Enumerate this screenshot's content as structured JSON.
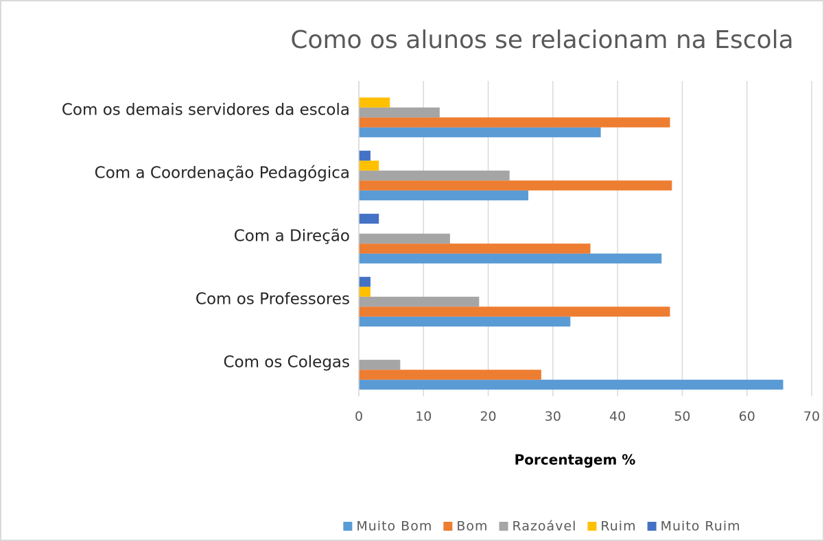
{
  "chart_data": {
    "type": "bar",
    "orientation": "horizontal",
    "title": "Como os alunos se relacionam na Escola",
    "x_label": "Porcentagem %",
    "categories": [
      "Com os Colegas",
      "Com os Professores",
      "Com a Direção",
      "Com a Coordenação Pedagógica",
      "Com os demais servidores da escola"
    ],
    "series": [
      {
        "name": "Muito Bom",
        "color": "#5b9bd5",
        "values": [
          65.6,
          32.7,
          46.8,
          26.2,
          37.4
        ]
      },
      {
        "name": "Bom",
        "color": "#ed7d31",
        "values": [
          28.2,
          48.1,
          35.8,
          48.4,
          48.1
        ]
      },
      {
        "name": "Razoável",
        "color": "#a5a5a5",
        "values": [
          6.4,
          18.6,
          14.1,
          23.3,
          12.5
        ]
      },
      {
        "name": "Ruim",
        "color": "#ffc000",
        "values": [
          0,
          1.8,
          0,
          3.1,
          4.8
        ]
      },
      {
        "name": "Muito Ruim",
        "color": "#4472c4",
        "values": [
          0,
          1.8,
          3.1,
          1.8,
          0
        ]
      }
    ],
    "xlim": [
      0,
      70
    ],
    "xticks": [
      0,
      10,
      20,
      30,
      40,
      50,
      60,
      70
    ],
    "grid": true,
    "legend": "bottom"
  }
}
